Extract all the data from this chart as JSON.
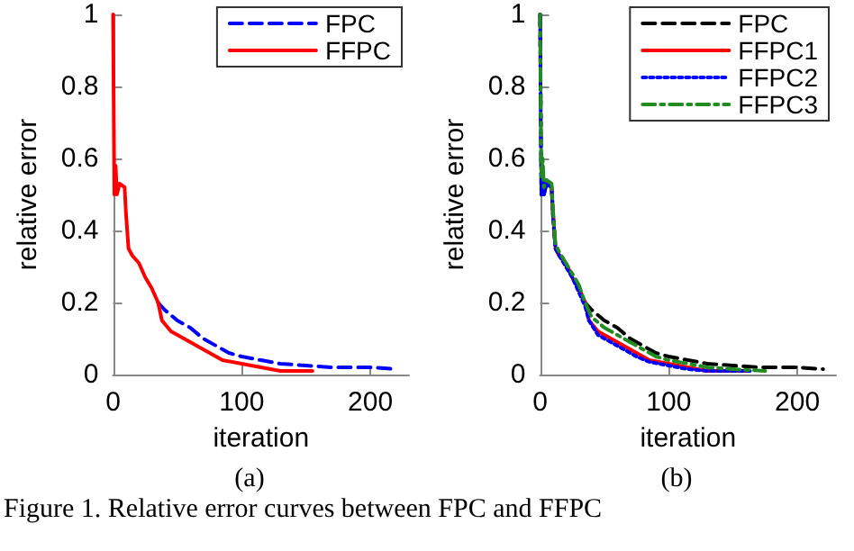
{
  "chart_data": [
    {
      "type": "line",
      "xlabel": "iteration",
      "ylabel": "relative error",
      "annotations": [
        "(a)",
        "Figure 1. Relative error curves between FPC and FFPC"
      ],
      "xlim": [
        0,
        230
      ],
      "xticks": [
        0,
        100,
        200
      ],
      "ylim": [
        0,
        1
      ],
      "yticks": [
        0,
        0.2,
        0.4,
        0.6,
        0.8,
        1
      ],
      "grid": false,
      "legend": "top right",
      "marker": "none",
      "series": [
        {
          "name": "FPC",
          "color": "#0000ff",
          "line_style": "dashed",
          "x": [
            35,
            40,
            50,
            60,
            70,
            80,
            90,
            100,
            115,
            130,
            150,
            170,
            200,
            220
          ],
          "values": [
            0.2,
            0.18,
            0.15,
            0.13,
            0.1,
            0.08,
            0.06,
            0.05,
            0.04,
            0.03,
            0.025,
            0.02,
            0.02,
            0.015
          ]
        },
        {
          "name": "FFPC",
          "color": "#ff0000",
          "line_style": "solid",
          "x": [
            0,
            1,
            2,
            3,
            5,
            9,
            10,
            12,
            15,
            20,
            25,
            30,
            35,
            38,
            45,
            55,
            65,
            75,
            85,
            100,
            115,
            130,
            155
          ],
          "values": [
            1,
            0.5,
            0.58,
            0.5,
            0.53,
            0.52,
            0.45,
            0.35,
            0.33,
            0.31,
            0.27,
            0.24,
            0.2,
            0.15,
            0.12,
            0.1,
            0.08,
            0.06,
            0.04,
            0.03,
            0.02,
            0.01,
            0.01
          ]
        }
      ]
    },
    {
      "type": "line",
      "xlabel": "iteration",
      "ylabel": "relative error",
      "annotations": [
        "(b)"
      ],
      "xlim": [
        0,
        230
      ],
      "xticks": [
        0,
        100,
        200
      ],
      "ylim": [
        0,
        1
      ],
      "yticks": [
        0,
        0.2,
        0.4,
        0.6,
        0.8,
        1
      ],
      "grid": false,
      "legend": "top right",
      "marker": "none",
      "series": [
        {
          "name": "FPC",
          "color": "#000000",
          "line_style": "dashed",
          "x": [
            0,
            1,
            2,
            3,
            5,
            9,
            10,
            12,
            15,
            20,
            25,
            30,
            35,
            40,
            50,
            60,
            70,
            80,
            90,
            100,
            115,
            130,
            150,
            170,
            200,
            220
          ],
          "values": [
            1,
            0.5,
            0.58,
            0.5,
            0.53,
            0.52,
            0.45,
            0.35,
            0.33,
            0.31,
            0.27,
            0.24,
            0.2,
            0.18,
            0.15,
            0.13,
            0.1,
            0.08,
            0.06,
            0.05,
            0.04,
            0.03,
            0.025,
            0.02,
            0.02,
            0.015
          ]
        },
        {
          "name": "FFPC1",
          "color": "#ff0000",
          "line_style": "solid",
          "x": [
            5,
            9,
            10,
            12,
            15,
            20,
            25,
            30,
            35,
            38,
            45,
            55,
            65,
            75,
            85,
            100,
            115,
            130,
            160
          ],
          "values": [
            0.53,
            0.52,
            0.45,
            0.35,
            0.33,
            0.31,
            0.27,
            0.24,
            0.2,
            0.15,
            0.12,
            0.1,
            0.08,
            0.06,
            0.04,
            0.03,
            0.02,
            0.01,
            0.01
          ]
        },
        {
          "name": "FFPC2",
          "color": "#0000ff",
          "line_style": "dotted",
          "x": [
            0,
            1,
            2,
            3,
            5,
            9,
            10,
            12,
            15,
            20,
            25,
            30,
            35,
            38,
            45,
            55,
            65,
            75,
            85,
            100,
            115,
            130,
            165
          ],
          "values": [
            1,
            0.5,
            0.56,
            0.5,
            0.53,
            0.52,
            0.44,
            0.35,
            0.33,
            0.3,
            0.27,
            0.23,
            0.19,
            0.15,
            0.11,
            0.09,
            0.07,
            0.05,
            0.035,
            0.025,
            0.015,
            0.01,
            0.01
          ]
        },
        {
          "name": "FFPC3",
          "color": "#228b22",
          "line_style": "dashed-dot",
          "x": [
            0,
            1,
            2,
            3,
            5,
            9,
            10,
            12,
            15,
            20,
            25,
            30,
            35,
            40,
            50,
            60,
            70,
            80,
            90,
            100,
            115,
            130,
            150,
            175
          ],
          "values": [
            1,
            0.55,
            0.6,
            0.52,
            0.54,
            0.53,
            0.46,
            0.36,
            0.34,
            0.31,
            0.28,
            0.25,
            0.2,
            0.16,
            0.13,
            0.11,
            0.09,
            0.07,
            0.05,
            0.04,
            0.03,
            0.02,
            0.015,
            0.01
          ]
        }
      ]
    }
  ]
}
